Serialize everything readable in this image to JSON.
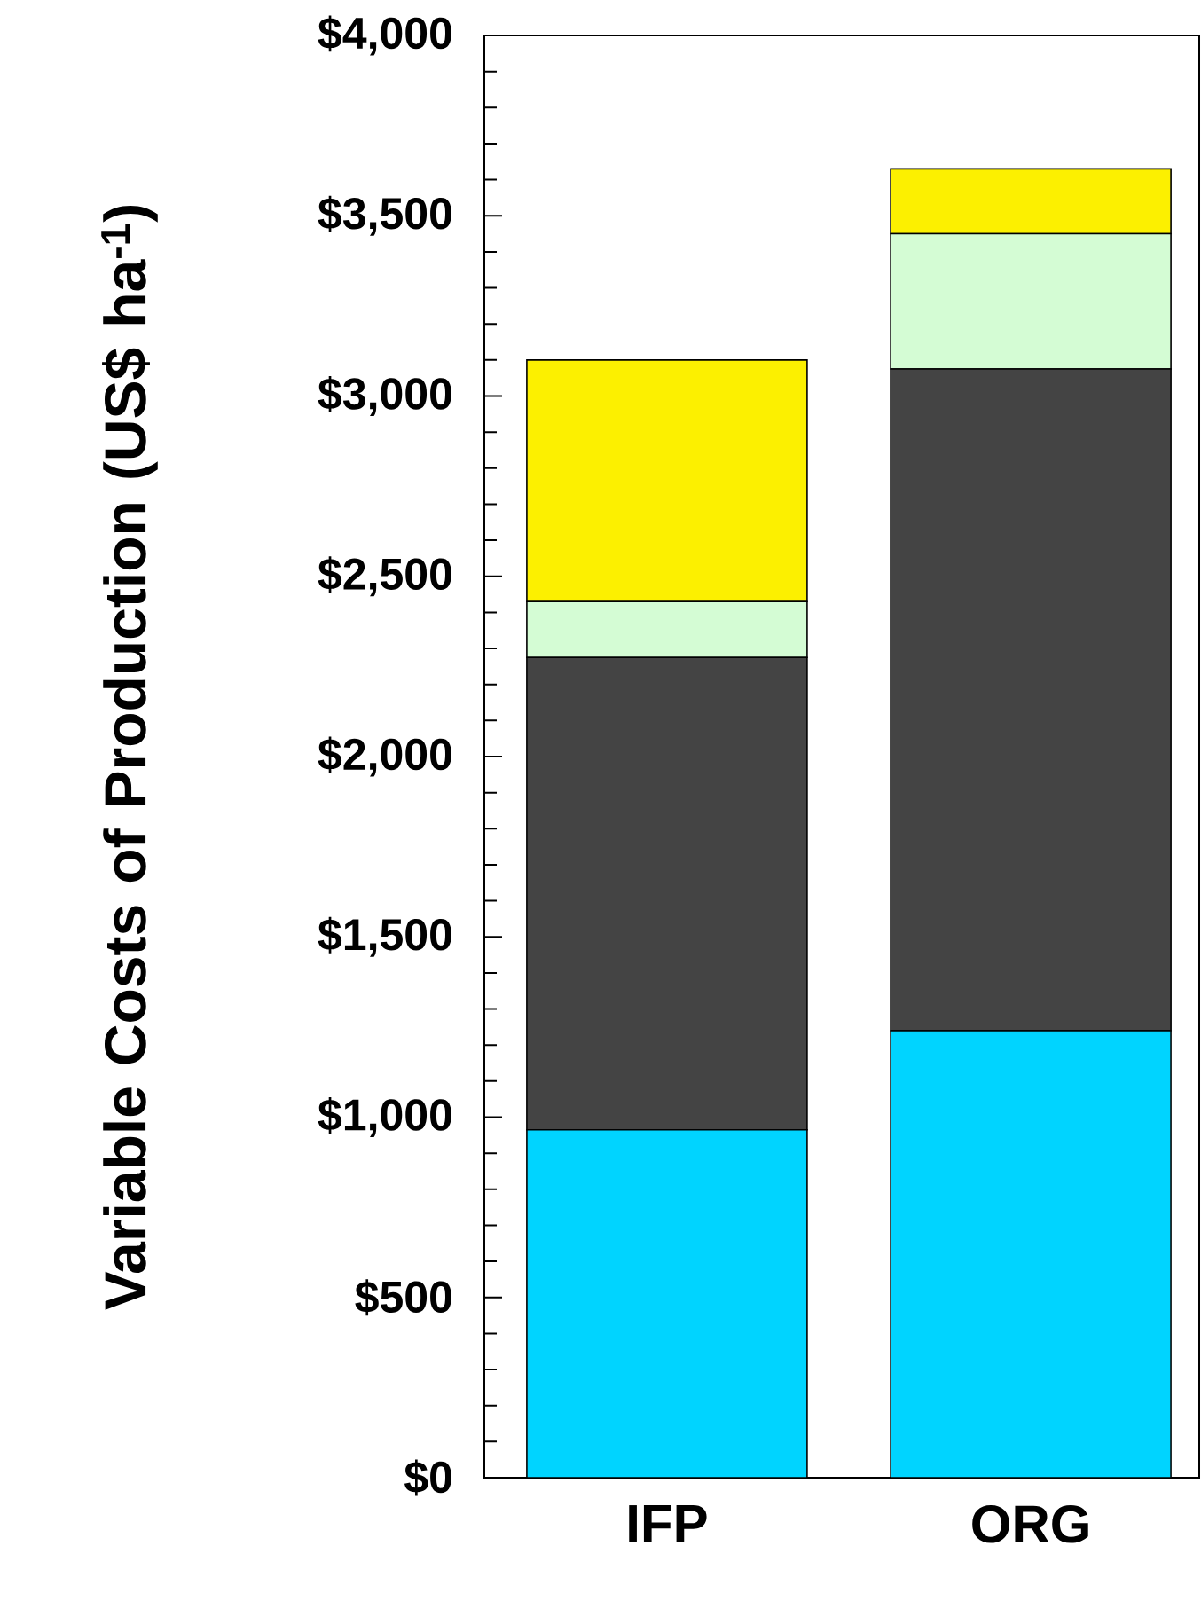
{
  "chart_data": {
    "type": "bar",
    "stacked": true,
    "ylabel": "Variable Costs of Production (US$ ha$^{-1}$)",
    "categories": [
      "IFP",
      "ORG"
    ],
    "series": [
      {
        "color": "#00d4ff",
        "values": [
          965,
          1240
        ]
      },
      {
        "color": "#444444",
        "values": [
          1310,
          1835
        ]
      },
      {
        "color": "#d4fcd4",
        "values": [
          155,
          375
        ]
      },
      {
        "color": "#fcf000",
        "values": [
          670,
          180
        ]
      }
    ],
    "ylim": [
      0,
      4000
    ],
    "yticks": [
      {
        "value": 0,
        "label": "$0"
      },
      {
        "value": 500,
        "label": "$500"
      },
      {
        "value": 1000,
        "label": "$1,000"
      },
      {
        "value": 1500,
        "label": "$1,500"
      },
      {
        "value": 2000,
        "label": "$2,000"
      },
      {
        "value": 2500,
        "label": "$2,500"
      },
      {
        "value": 3000,
        "label": "$3,000"
      },
      {
        "value": 3500,
        "label": "$3,500"
      },
      {
        "value": 4000,
        "label": "$4,000"
      }
    ]
  }
}
